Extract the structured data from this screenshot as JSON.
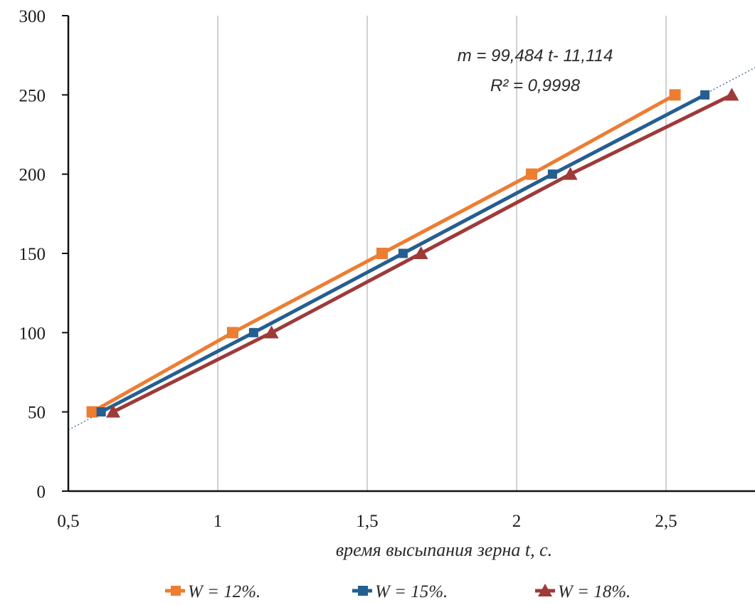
{
  "chart_data": {
    "type": "line",
    "title": "",
    "xlabel": "время высыпания зерна t, с.",
    "ylabel": "",
    "xlim": [
      0.5,
      2.8
    ],
    "ylim": [
      0,
      300
    ],
    "grid": "vertical",
    "legend": "bottom",
    "x_ticks": [
      "0,5",
      "1",
      "1,5",
      "2",
      "2,5"
    ],
    "y_ticks": [
      "0",
      "50",
      "100",
      "150",
      "200",
      "250",
      "300"
    ],
    "series": [
      {
        "name": "W = 12%.",
        "color": "#ed7d31",
        "marker": "square",
        "x": [
          0.58,
          1.05,
          1.55,
          2.05,
          2.53
        ],
        "y": [
          50,
          100,
          150,
          200,
          250
        ]
      },
      {
        "name": "W = 15%.",
        "color": "#255e91",
        "marker": "square",
        "x": [
          0.61,
          1.12,
          1.62,
          2.12,
          2.63
        ],
        "y": [
          50,
          100,
          150,
          200,
          250
        ]
      },
      {
        "name": "W = 18%.",
        "color": "#9e3a38",
        "marker": "triangle",
        "x": [
          0.65,
          1.18,
          1.68,
          2.18,
          2.72
        ],
        "y": [
          50,
          100,
          150,
          200,
          250
        ]
      }
    ],
    "trendline": {
      "slope": 99.484,
      "intercept": -11.114,
      "equation": "m = 99,484 t- 11,114",
      "r2": "R² = 0,9998",
      "color": "#5b7fa6",
      "style": "dotted"
    }
  }
}
